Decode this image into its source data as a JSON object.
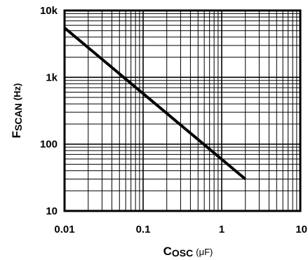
{
  "chart_data": {
    "type": "line",
    "x_scale": "log",
    "y_scale": "log",
    "xlim": [
      0.01,
      10
    ],
    "ylim": [
      10,
      10000
    ],
    "xlabel": {
      "main": "C",
      "sub": "OSC",
      "unit": "(μF)"
    },
    "ylabel": {
      "main": "F",
      "sub": "SCAN",
      "unit": "(Hz)"
    },
    "x_ticks": [
      {
        "value": 0.01,
        "label": "0.01"
      },
      {
        "value": 0.1,
        "label": "0.1"
      },
      {
        "value": 1,
        "label": "1"
      },
      {
        "value": 10,
        "label": "10"
      }
    ],
    "y_ticks": [
      {
        "value": 10,
        "label": "10"
      },
      {
        "value": 100,
        "label": "100"
      },
      {
        "value": 1000,
        "label": "1k"
      },
      {
        "value": 10000,
        "label": "10k"
      }
    ],
    "grid": true,
    "series": [
      {
        "x": [
          0.01,
          2
        ],
        "y": [
          5500,
          30
        ]
      }
    ]
  }
}
